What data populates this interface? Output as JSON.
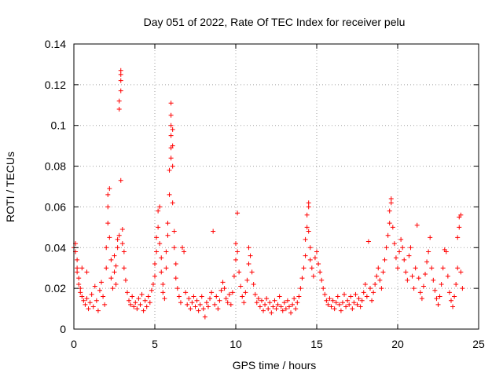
{
  "chart_data": {
    "type": "scatter",
    "title": "Day 051 of 2022, Rate Of TEC Index for receiver pelu",
    "xlabel": "GPS time / hours",
    "ylabel": "ROTI / TECUs",
    "xlim": [
      0,
      25
    ],
    "ylim": [
      0,
      0.14
    ],
    "xticks": [
      0,
      5,
      10,
      15,
      20,
      25
    ],
    "yticks": [
      0,
      0.02,
      0.04,
      0.06,
      0.08,
      0.1,
      0.12,
      0.14
    ],
    "xtick_labels": [
      "0",
      "5",
      "10",
      "15",
      "20",
      "25"
    ],
    "ytick_labels": [
      "0",
      "0.02",
      "0.04",
      "0.06",
      "0.08",
      "0.1",
      "0.12",
      "0.14"
    ],
    "grid": true,
    "marker": "+",
    "color": "#ff0000",
    "series": [
      {
        "name": "ROTI",
        "points": [
          [
            0.0,
            0.04
          ],
          [
            0.1,
            0.042
          ],
          [
            0.1,
            0.038
          ],
          [
            0.2,
            0.034
          ],
          [
            0.2,
            0.03
          ],
          [
            0.2,
            0.028
          ],
          [
            0.3,
            0.025
          ],
          [
            0.3,
            0.022
          ],
          [
            0.4,
            0.02
          ],
          [
            0.4,
            0.018
          ],
          [
            0.5,
            0.03
          ],
          [
            0.5,
            0.016
          ],
          [
            0.6,
            0.014
          ],
          [
            0.7,
            0.012
          ],
          [
            0.8,
            0.028
          ],
          [
            0.8,
            0.015
          ],
          [
            0.9,
            0.01
          ],
          [
            1.0,
            0.013
          ],
          [
            1.1,
            0.017
          ],
          [
            1.2,
            0.011
          ],
          [
            1.3,
            0.021
          ],
          [
            1.4,
            0.014
          ],
          [
            1.5,
            0.009
          ],
          [
            1.6,
            0.019
          ],
          [
            1.7,
            0.023
          ],
          [
            1.8,
            0.016
          ],
          [
            1.9,
            0.012
          ],
          [
            2.0,
            0.03
          ],
          [
            2.0,
            0.04
          ],
          [
            2.1,
            0.052
          ],
          [
            2.1,
            0.06
          ],
          [
            2.1,
            0.066
          ],
          [
            2.2,
            0.069
          ],
          [
            2.2,
            0.045
          ],
          [
            2.3,
            0.034
          ],
          [
            2.3,
            0.025
          ],
          [
            2.4,
            0.02
          ],
          [
            2.5,
            0.028
          ],
          [
            2.5,
            0.036
          ],
          [
            2.6,
            0.031
          ],
          [
            2.6,
            0.022
          ],
          [
            2.7,
            0.04
          ],
          [
            2.7,
            0.044
          ],
          [
            2.8,
            0.046
          ],
          [
            2.8,
            0.108
          ],
          [
            2.8,
            0.112
          ],
          [
            2.9,
            0.117
          ],
          [
            2.9,
            0.122
          ],
          [
            2.9,
            0.125
          ],
          [
            2.9,
            0.127
          ],
          [
            2.9,
            0.073
          ],
          [
            3.0,
            0.049
          ],
          [
            3.0,
            0.042
          ],
          [
            3.1,
            0.038
          ],
          [
            3.1,
            0.03
          ],
          [
            3.2,
            0.024
          ],
          [
            3.3,
            0.018
          ],
          [
            3.4,
            0.014
          ],
          [
            3.5,
            0.012
          ],
          [
            3.6,
            0.016
          ],
          [
            3.7,
            0.011
          ],
          [
            3.8,
            0.013
          ],
          [
            3.9,
            0.01
          ],
          [
            4.0,
            0.015
          ],
          [
            4.1,
            0.012
          ],
          [
            4.2,
            0.017
          ],
          [
            4.3,
            0.009
          ],
          [
            4.4,
            0.014
          ],
          [
            4.5,
            0.011
          ],
          [
            4.6,
            0.016
          ],
          [
            4.7,
            0.013
          ],
          [
            4.8,
            0.019
          ],
          [
            4.9,
            0.022
          ],
          [
            5.0,
            0.026
          ],
          [
            5.0,
            0.032
          ],
          [
            5.1,
            0.038
          ],
          [
            5.1,
            0.045
          ],
          [
            5.2,
            0.05
          ],
          [
            5.2,
            0.058
          ],
          [
            5.3,
            0.06
          ],
          [
            5.3,
            0.042
          ],
          [
            5.4,
            0.035
          ],
          [
            5.4,
            0.028
          ],
          [
            5.5,
            0.022
          ],
          [
            5.5,
            0.018
          ],
          [
            5.6,
            0.015
          ],
          [
            5.7,
            0.03
          ],
          [
            5.7,
            0.038
          ],
          [
            5.8,
            0.046
          ],
          [
            5.8,
            0.052
          ],
          [
            5.9,
            0.066
          ],
          [
            5.9,
            0.078
          ],
          [
            6.0,
            0.084
          ],
          [
            6.0,
            0.089
          ],
          [
            6.0,
            0.095
          ],
          [
            6.0,
            0.1
          ],
          [
            6.0,
            0.105
          ],
          [
            6.0,
            0.111
          ],
          [
            6.1,
            0.098
          ],
          [
            6.1,
            0.09
          ],
          [
            6.1,
            0.08
          ],
          [
            6.1,
            0.062
          ],
          [
            6.2,
            0.048
          ],
          [
            6.2,
            0.04
          ],
          [
            6.3,
            0.032
          ],
          [
            6.3,
            0.025
          ],
          [
            6.4,
            0.02
          ],
          [
            6.5,
            0.016
          ],
          [
            6.6,
            0.013
          ],
          [
            6.7,
            0.04
          ],
          [
            6.8,
            0.038
          ],
          [
            6.9,
            0.018
          ],
          [
            7.0,
            0.012
          ],
          [
            7.1,
            0.015
          ],
          [
            7.2,
            0.01
          ],
          [
            7.3,
            0.013
          ],
          [
            7.4,
            0.016
          ],
          [
            7.5,
            0.011
          ],
          [
            7.6,
            0.014
          ],
          [
            7.7,
            0.009
          ],
          [
            7.8,
            0.012
          ],
          [
            7.9,
            0.016
          ],
          [
            8.0,
            0.01
          ],
          [
            8.1,
            0.006
          ],
          [
            8.2,
            0.013
          ],
          [
            8.3,
            0.011
          ],
          [
            8.4,
            0.015
          ],
          [
            8.5,
            0.018
          ],
          [
            8.6,
            0.048
          ],
          [
            8.7,
            0.012
          ],
          [
            8.8,
            0.016
          ],
          [
            8.9,
            0.01
          ],
          [
            9.0,
            0.014
          ],
          [
            9.1,
            0.019
          ],
          [
            9.2,
            0.023
          ],
          [
            9.3,
            0.02
          ],
          [
            9.4,
            0.015
          ],
          [
            9.5,
            0.013
          ],
          [
            9.6,
            0.017
          ],
          [
            9.7,
            0.012
          ],
          [
            9.8,
            0.018
          ],
          [
            9.9,
            0.026
          ],
          [
            10.0,
            0.034
          ],
          [
            10.0,
            0.042
          ],
          [
            10.1,
            0.057
          ],
          [
            10.1,
            0.038
          ],
          [
            10.2,
            0.028
          ],
          [
            10.3,
            0.021
          ],
          [
            10.4,
            0.016
          ],
          [
            10.5,
            0.013
          ],
          [
            10.6,
            0.018
          ],
          [
            10.7,
            0.024
          ],
          [
            10.8,
            0.032
          ],
          [
            10.8,
            0.04
          ],
          [
            10.9,
            0.036
          ],
          [
            11.0,
            0.028
          ],
          [
            11.1,
            0.022
          ],
          [
            11.2,
            0.017
          ],
          [
            11.3,
            0.013
          ],
          [
            11.4,
            0.015
          ],
          [
            11.5,
            0.011
          ],
          [
            11.6,
            0.014
          ],
          [
            11.7,
            0.009
          ],
          [
            11.8,
            0.012
          ],
          [
            11.9,
            0.015
          ],
          [
            12.0,
            0.01
          ],
          [
            12.1,
            0.013
          ],
          [
            12.2,
            0.008
          ],
          [
            12.3,
            0.011
          ],
          [
            12.4,
            0.014
          ],
          [
            12.5,
            0.01
          ],
          [
            12.6,
            0.012
          ],
          [
            12.7,
            0.016
          ],
          [
            12.8,
            0.011
          ],
          [
            12.9,
            0.009
          ],
          [
            13.0,
            0.013
          ],
          [
            13.1,
            0.01
          ],
          [
            13.2,
            0.014
          ],
          [
            13.3,
            0.011
          ],
          [
            13.4,
            0.008
          ],
          [
            13.5,
            0.012
          ],
          [
            13.6,
            0.015
          ],
          [
            13.7,
            0.01
          ],
          [
            13.8,
            0.013
          ],
          [
            13.9,
            0.016
          ],
          [
            14.0,
            0.02
          ],
          [
            14.1,
            0.025
          ],
          [
            14.2,
            0.03
          ],
          [
            14.3,
            0.036
          ],
          [
            14.3,
            0.044
          ],
          [
            14.4,
            0.05
          ],
          [
            14.4,
            0.056
          ],
          [
            14.5,
            0.06
          ],
          [
            14.5,
            0.062
          ],
          [
            14.5,
            0.048
          ],
          [
            14.6,
            0.04
          ],
          [
            14.6,
            0.034
          ],
          [
            14.7,
            0.03
          ],
          [
            14.8,
            0.026
          ],
          [
            14.9,
            0.035
          ],
          [
            15.0,
            0.038
          ],
          [
            15.1,
            0.032
          ],
          [
            15.2,
            0.028
          ],
          [
            15.3,
            0.024
          ],
          [
            15.4,
            0.02
          ],
          [
            15.5,
            0.017
          ],
          [
            15.6,
            0.014
          ],
          [
            15.7,
            0.012
          ],
          [
            15.8,
            0.015
          ],
          [
            15.9,
            0.011
          ],
          [
            16.0,
            0.014
          ],
          [
            16.1,
            0.01
          ],
          [
            16.2,
            0.013
          ],
          [
            16.3,
            0.016
          ],
          [
            16.4,
            0.012
          ],
          [
            16.5,
            0.009
          ],
          [
            16.6,
            0.013
          ],
          [
            16.7,
            0.017
          ],
          [
            16.8,
            0.011
          ],
          [
            16.9,
            0.014
          ],
          [
            17.0,
            0.012
          ],
          [
            17.1,
            0.016
          ],
          [
            17.2,
            0.01
          ],
          [
            17.3,
            0.013
          ],
          [
            17.4,
            0.017
          ],
          [
            17.5,
            0.012
          ],
          [
            17.6,
            0.015
          ],
          [
            17.7,
            0.011
          ],
          [
            17.8,
            0.014
          ],
          [
            17.9,
            0.018
          ],
          [
            18.0,
            0.022
          ],
          [
            18.1,
            0.016
          ],
          [
            18.2,
            0.043
          ],
          [
            18.3,
            0.02
          ],
          [
            18.4,
            0.014
          ],
          [
            18.5,
            0.018
          ],
          [
            18.6,
            0.022
          ],
          [
            18.7,
            0.026
          ],
          [
            18.8,
            0.03
          ],
          [
            18.9,
            0.024
          ],
          [
            19.0,
            0.02
          ],
          [
            19.1,
            0.028
          ],
          [
            19.2,
            0.034
          ],
          [
            19.3,
            0.04
          ],
          [
            19.4,
            0.046
          ],
          [
            19.5,
            0.052
          ],
          [
            19.5,
            0.058
          ],
          [
            19.6,
            0.062
          ],
          [
            19.6,
            0.064
          ],
          [
            19.7,
            0.05
          ],
          [
            19.8,
            0.042
          ],
          [
            19.9,
            0.035
          ],
          [
            20.0,
            0.03
          ],
          [
            20.1,
            0.038
          ],
          [
            20.2,
            0.044
          ],
          [
            20.3,
            0.04
          ],
          [
            20.4,
            0.034
          ],
          [
            20.5,
            0.028
          ],
          [
            20.6,
            0.024
          ],
          [
            20.7,
            0.036
          ],
          [
            20.8,
            0.04
          ],
          [
            20.9,
            0.026
          ],
          [
            21.0,
            0.02
          ],
          [
            21.1,
            0.03
          ],
          [
            21.2,
            0.051
          ],
          [
            21.3,
            0.025
          ],
          [
            21.4,
            0.018
          ],
          [
            21.5,
            0.015
          ],
          [
            21.6,
            0.021
          ],
          [
            21.7,
            0.027
          ],
          [
            21.8,
            0.033
          ],
          [
            21.9,
            0.038
          ],
          [
            22.0,
            0.045
          ],
          [
            22.1,
            0.03
          ],
          [
            22.2,
            0.024
          ],
          [
            22.3,
            0.019
          ],
          [
            22.4,
            0.015
          ],
          [
            22.5,
            0.012
          ],
          [
            22.6,
            0.016
          ],
          [
            22.7,
            0.022
          ],
          [
            22.8,
            0.03
          ],
          [
            22.9,
            0.039
          ],
          [
            23.0,
            0.038
          ],
          [
            23.1,
            0.026
          ],
          [
            23.2,
            0.018
          ],
          [
            23.3,
            0.014
          ],
          [
            23.4,
            0.011
          ],
          [
            23.5,
            0.016
          ],
          [
            23.6,
            0.022
          ],
          [
            23.7,
            0.03
          ],
          [
            23.7,
            0.045
          ],
          [
            23.8,
            0.05
          ],
          [
            23.8,
            0.055
          ],
          [
            23.9,
            0.056
          ],
          [
            23.9,
            0.028
          ],
          [
            24.0,
            0.02
          ]
        ]
      }
    ]
  }
}
